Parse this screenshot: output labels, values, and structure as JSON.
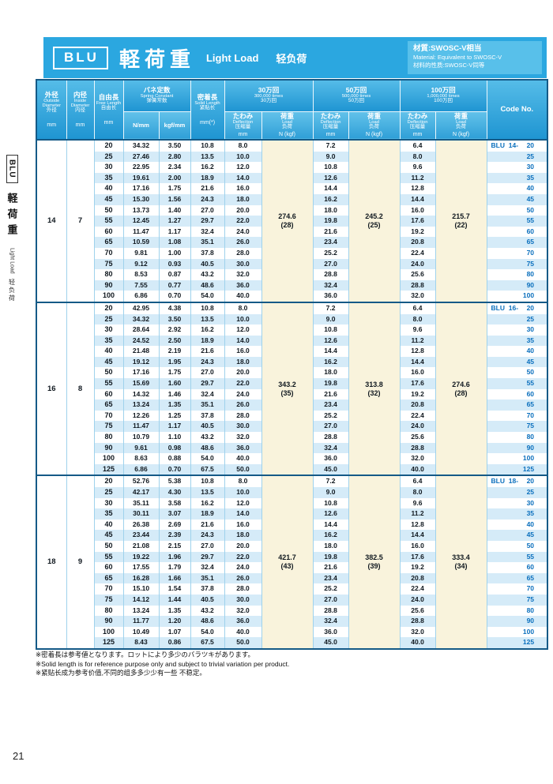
{
  "page": {
    "number": "21"
  },
  "title_bar": {
    "code": "BLU",
    "title_jp": "軽荷重",
    "title_en": "Light Load",
    "title_cn": "轻负荷",
    "material": {
      "line1": "材質:SWOSC-V相当",
      "line2": "Material: Equivalent to SWOSC-V",
      "line3": "材料的性质:SWOSC-V同等"
    }
  },
  "sidebar": {
    "code": "BLU",
    "jp": "軽荷重",
    "en": "Light Load",
    "cn": "轻负荷"
  },
  "table": {
    "columns": {
      "outside": {
        "jp": "外径",
        "en": "Outside Diameter",
        "cn": "外径",
        "unit": "mm"
      },
      "inside": {
        "jp": "内径",
        "en": "Inside Diameter",
        "cn": "内径",
        "unit": "mm"
      },
      "free": {
        "jp": "自由長",
        "en": "Free Length",
        "cn": "自由长",
        "unit": "mm"
      },
      "spring": {
        "jp": "バネ定数",
        "en": "Spring Constant",
        "cn": "弹簧常数",
        "unit_n": "N/mm",
        "unit_kgf": "kgf/mm"
      },
      "solid": {
        "jp": "密着長",
        "en": "Solid Length",
        "cn": "紧贴长",
        "unit": "mm(*)"
      },
      "cycles": [
        {
          "jp": "30万回",
          "en": "300,000 times",
          "cn": "30万回"
        },
        {
          "jp": "50万回",
          "en": "500,000 times",
          "cn": "50万回"
        },
        {
          "jp": "100万回",
          "en": "1,000,000 times",
          "cn": "100万回"
        }
      ],
      "deflection": {
        "jp": "たわみ",
        "en": "Deflection",
        "cn": "压缩量",
        "unit": "mm"
      },
      "load": {
        "jp": "荷重",
        "en": "Load",
        "cn": "负荷",
        "unit": "N (kgf)"
      },
      "code": "Code No."
    },
    "code_prefix": "BLU",
    "row_columns": [
      "free_length_mm",
      "spring_constant_N_mm",
      "spring_constant_kgf_mm",
      "solid_length_mm",
      "deflection_300k_mm",
      "deflection_500k_mm",
      "deflection_1m_mm",
      "code_no"
    ],
    "sections": [
      {
        "outside_dia": "14",
        "inside_dia": "7",
        "code_series": "14-",
        "loads": [
          {
            "n": "274.6",
            "kgf": "(28)"
          },
          {
            "n": "245.2",
            "kgf": "(25)"
          },
          {
            "n": "215.7",
            "kgf": "(22)"
          }
        ],
        "rows": [
          [
            "20",
            "34.32",
            "3.50",
            "10.8",
            "8.0",
            "7.2",
            "6.4",
            "20"
          ],
          [
            "25",
            "27.46",
            "2.80",
            "13.5",
            "10.0",
            "9.0",
            "8.0",
            "25"
          ],
          [
            "30",
            "22.95",
            "2.34",
            "16.2",
            "12.0",
            "10.8",
            "9.6",
            "30"
          ],
          [
            "35",
            "19.61",
            "2.00",
            "18.9",
            "14.0",
            "12.6",
            "11.2",
            "35"
          ],
          [
            "40",
            "17.16",
            "1.75",
            "21.6",
            "16.0",
            "14.4",
            "12.8",
            "40"
          ],
          [
            "45",
            "15.30",
            "1.56",
            "24.3",
            "18.0",
            "16.2",
            "14.4",
            "45"
          ],
          [
            "50",
            "13.73",
            "1.40",
            "27.0",
            "20.0",
            "18.0",
            "16.0",
            "50"
          ],
          [
            "55",
            "12.45",
            "1.27",
            "29.7",
            "22.0",
            "19.8",
            "17.6",
            "55"
          ],
          [
            "60",
            "11.47",
            "1.17",
            "32.4",
            "24.0",
            "21.6",
            "19.2",
            "60"
          ],
          [
            "65",
            "10.59",
            "1.08",
            "35.1",
            "26.0",
            "23.4",
            "20.8",
            "65"
          ],
          [
            "70",
            "9.81",
            "1.00",
            "37.8",
            "28.0",
            "25.2",
            "22.4",
            "70"
          ],
          [
            "75",
            "9.12",
            "0.93",
            "40.5",
            "30.0",
            "27.0",
            "24.0",
            "75"
          ],
          [
            "80",
            "8.53",
            "0.87",
            "43.2",
            "32.0",
            "28.8",
            "25.6",
            "80"
          ],
          [
            "90",
            "7.55",
            "0.77",
            "48.6",
            "36.0",
            "32.4",
            "28.8",
            "90"
          ],
          [
            "100",
            "6.86",
            "0.70",
            "54.0",
            "40.0",
            "36.0",
            "32.0",
            "100"
          ]
        ]
      },
      {
        "outside_dia": "16",
        "inside_dia": "8",
        "code_series": "16-",
        "loads": [
          {
            "n": "343.2",
            "kgf": "(35)"
          },
          {
            "n": "313.8",
            "kgf": "(32)"
          },
          {
            "n": "274.6",
            "kgf": "(28)"
          }
        ],
        "rows": [
          [
            "20",
            "42.95",
            "4.38",
            "10.8",
            "8.0",
            "7.2",
            "6.4",
            "20"
          ],
          [
            "25",
            "34.32",
            "3.50",
            "13.5",
            "10.0",
            "9.0",
            "8.0",
            "25"
          ],
          [
            "30",
            "28.64",
            "2.92",
            "16.2",
            "12.0",
            "10.8",
            "9.6",
            "30"
          ],
          [
            "35",
            "24.52",
            "2.50",
            "18.9",
            "14.0",
            "12.6",
            "11.2",
            "35"
          ],
          [
            "40",
            "21.48",
            "2.19",
            "21.6",
            "16.0",
            "14.4",
            "12.8",
            "40"
          ],
          [
            "45",
            "19.12",
            "1.95",
            "24.3",
            "18.0",
            "16.2",
            "14.4",
            "45"
          ],
          [
            "50",
            "17.16",
            "1.75",
            "27.0",
            "20.0",
            "18.0",
            "16.0",
            "50"
          ],
          [
            "55",
            "15.69",
            "1.60",
            "29.7",
            "22.0",
            "19.8",
            "17.6",
            "55"
          ],
          [
            "60",
            "14.32",
            "1.46",
            "32.4",
            "24.0",
            "21.6",
            "19.2",
            "60"
          ],
          [
            "65",
            "13.24",
            "1.35",
            "35.1",
            "26.0",
            "23.4",
            "20.8",
            "65"
          ],
          [
            "70",
            "12.26",
            "1.25",
            "37.8",
            "28.0",
            "25.2",
            "22.4",
            "70"
          ],
          [
            "75",
            "11.47",
            "1.17",
            "40.5",
            "30.0",
            "27.0",
            "24.0",
            "75"
          ],
          [
            "80",
            "10.79",
            "1.10",
            "43.2",
            "32.0",
            "28.8",
            "25.6",
            "80"
          ],
          [
            "90",
            "9.61",
            "0.98",
            "48.6",
            "36.0",
            "32.4",
            "28.8",
            "90"
          ],
          [
            "100",
            "8.63",
            "0.88",
            "54.0",
            "40.0",
            "36.0",
            "32.0",
            "100"
          ],
          [
            "125",
            "6.86",
            "0.70",
            "67.5",
            "50.0",
            "45.0",
            "40.0",
            "125"
          ]
        ]
      },
      {
        "outside_dia": "18",
        "inside_dia": "9",
        "code_series": "18-",
        "loads": [
          {
            "n": "421.7",
            "kgf": "(43)"
          },
          {
            "n": "382.5",
            "kgf": "(39)"
          },
          {
            "n": "333.4",
            "kgf": "(34)"
          }
        ],
        "rows": [
          [
            "20",
            "52.76",
            "5.38",
            "10.8",
            "8.0",
            "7.2",
            "6.4",
            "20"
          ],
          [
            "25",
            "42.17",
            "4.30",
            "13.5",
            "10.0",
            "9.0",
            "8.0",
            "25"
          ],
          [
            "30",
            "35.11",
            "3.58",
            "16.2",
            "12.0",
            "10.8",
            "9.6",
            "30"
          ],
          [
            "35",
            "30.11",
            "3.07",
            "18.9",
            "14.0",
            "12.6",
            "11.2",
            "35"
          ],
          [
            "40",
            "26.38",
            "2.69",
            "21.6",
            "16.0",
            "14.4",
            "12.8",
            "40"
          ],
          [
            "45",
            "23.44",
            "2.39",
            "24.3",
            "18.0",
            "16.2",
            "14.4",
            "45"
          ],
          [
            "50",
            "21.08",
            "2.15",
            "27.0",
            "20.0",
            "18.0",
            "16.0",
            "50"
          ],
          [
            "55",
            "19.22",
            "1.96",
            "29.7",
            "22.0",
            "19.8",
            "17.6",
            "55"
          ],
          [
            "60",
            "17.55",
            "1.79",
            "32.4",
            "24.0",
            "21.6",
            "19.2",
            "60"
          ],
          [
            "65",
            "16.28",
            "1.66",
            "35.1",
            "26.0",
            "23.4",
            "20.8",
            "65"
          ],
          [
            "70",
            "15.10",
            "1.54",
            "37.8",
            "28.0",
            "25.2",
            "22.4",
            "70"
          ],
          [
            "75",
            "14.12",
            "1.44",
            "40.5",
            "30.0",
            "27.0",
            "24.0",
            "75"
          ],
          [
            "80",
            "13.24",
            "1.35",
            "43.2",
            "32.0",
            "28.8",
            "25.6",
            "80"
          ],
          [
            "90",
            "11.77",
            "1.20",
            "48.6",
            "36.0",
            "32.4",
            "28.8",
            "90"
          ],
          [
            "100",
            "10.49",
            "1.07",
            "54.0",
            "40.0",
            "36.0",
            "32.0",
            "100"
          ],
          [
            "125",
            "8.43",
            "0.86",
            "67.5",
            "50.0",
            "45.0",
            "40.0",
            "125"
          ]
        ]
      }
    ]
  },
  "notes": {
    "jp": "※密着長は参考値となります。ロットにより多少のバラツキがあります。",
    "en": "※Solid length is for reference purpose only and subject to trivial variation per product.",
    "cn": "※紧贴长成为参考价值,不同的组多多少少有一些 不稳定。"
  }
}
